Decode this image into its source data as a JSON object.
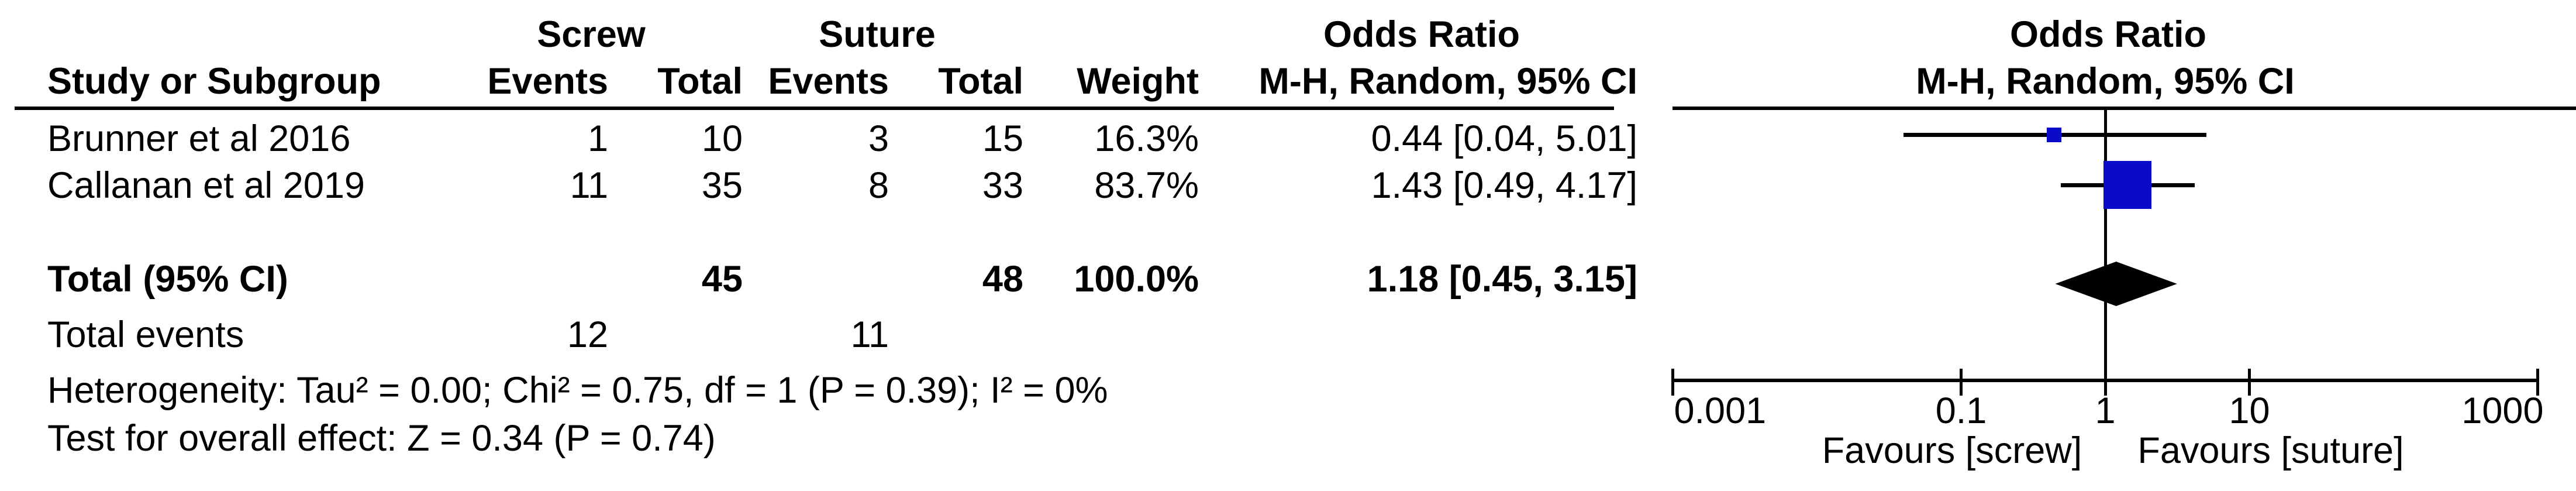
{
  "table": {
    "group_headers": {
      "screw": "Screw",
      "suture": "Suture",
      "odds_ratio_table": "Odds Ratio",
      "odds_ratio_plot": "Odds Ratio"
    },
    "col_headers": {
      "study": "Study or Subgroup",
      "events1": "Events",
      "total1": "Total",
      "events2": "Events",
      "total2": "Total",
      "weight": "Weight",
      "mh_ci": "M-H, Random, 95% CI",
      "mh_ci_plot": "M-H, Random, 95% CI"
    },
    "rows": [
      {
        "study": "Brunner et al 2016",
        "e1": "1",
        "t1": "10",
        "e2": "3",
        "t2": "15",
        "weight": "16.3%",
        "ci": "0.44 [0.04, 5.01]"
      },
      {
        "study": "Callanan et al 2019",
        "e1": "11",
        "t1": "35",
        "e2": "8",
        "t2": "33",
        "weight": "83.7%",
        "ci": "1.43 [0.49, 4.17]"
      }
    ],
    "total_row": {
      "label": "Total (95% CI)",
      "t1": "45",
      "t2": "48",
      "weight": "100.0%",
      "ci": "1.18 [0.45, 3.15]"
    },
    "total_events": {
      "label": "Total events",
      "e1": "12",
      "e2": "11"
    },
    "heterogeneity": "Heterogeneity: Tau² = 0.00; Chi² = 0.75, df = 1 (P = 0.39); I² = 0%",
    "overall_effect": "Test for overall effect: Z = 0.34 (P = 0.74)"
  },
  "plot": {
    "favours_left": "Favours [screw]",
    "favours_right": "Favours [suture]",
    "marker_color": "#0A0ACA",
    "line_color": "#000000"
  },
  "chart_data": {
    "type": "forest",
    "effect_measure": "Odds Ratio",
    "method": "M-H, Random, 95% CI",
    "studies": [
      {
        "name": "Brunner et al 2016",
        "events_screw": 1,
        "total_screw": 10,
        "events_suture": 3,
        "total_suture": 15,
        "weight_pct": 16.3,
        "or": 0.44,
        "ci_low": 0.04,
        "ci_high": 5.01
      },
      {
        "name": "Callanan et al 2019",
        "events_screw": 11,
        "total_screw": 35,
        "events_suture": 8,
        "total_suture": 33,
        "weight_pct": 83.7,
        "or": 1.43,
        "ci_low": 0.49,
        "ci_high": 4.17
      }
    ],
    "total": {
      "total_screw": 45,
      "total_suture": 48,
      "weight_pct": 100.0,
      "or": 1.18,
      "ci_low": 0.45,
      "ci_high": 3.15,
      "total_events_screw": 12,
      "total_events_suture": 11
    },
    "heterogeneity": {
      "tau2": 0.0,
      "chi2": 0.75,
      "df": 1,
      "p": 0.39,
      "i2_pct": 0
    },
    "overall_effect": {
      "z": 0.34,
      "p": 0.74
    },
    "axis": {
      "scale": "log",
      "ticks": [
        0.001,
        0.1,
        1,
        10,
        1000
      ],
      "tick_labels": [
        "0.001",
        "0.1",
        "1",
        "10",
        "1000"
      ],
      "null_line": 1,
      "left_label": "Favours [screw]",
      "right_label": "Favours [suture]"
    }
  }
}
